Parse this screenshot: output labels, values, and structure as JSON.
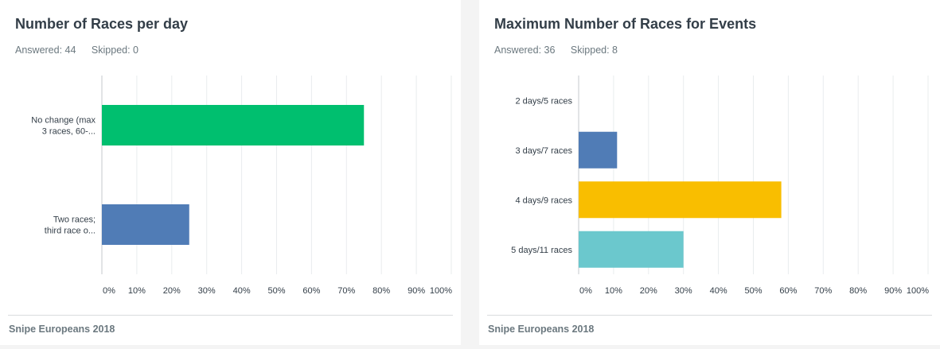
{
  "chart_data": [
    {
      "type": "bar",
      "orientation": "horizontal",
      "title": "Number of Races per day",
      "answered": "Answered: 44",
      "skipped": "Skipped: 0",
      "footer": "Snipe Europeans 2018",
      "categories": [
        [
          "No change (max",
          "3 races, 60-..."
        ],
        [
          "Two races;",
          "third race o..."
        ]
      ],
      "values": [
        75,
        25
      ],
      "colors": [
        "#00bf6f",
        "#507cb6"
      ],
      "x_ticks": [
        "0%",
        "10%",
        "20%",
        "30%",
        "40%",
        "50%",
        "60%",
        "70%",
        "80%",
        "90%",
        "100%"
      ],
      "xlim": [
        0,
        100
      ],
      "grid": true,
      "legend": "none"
    },
    {
      "type": "bar",
      "orientation": "horizontal",
      "title": "Maximum Number of Races for Events",
      "answered": "Answered: 36",
      "skipped": "Skipped: 8",
      "footer": "Snipe Europeans 2018",
      "categories": [
        [
          "2 days/5 races"
        ],
        [
          "3 days/7 races"
        ],
        [
          "4 days/9 races"
        ],
        [
          "5 days/11 races"
        ]
      ],
      "values": [
        0,
        11,
        58,
        30
      ],
      "colors": [
        "#f05b24",
        "#507cb6",
        "#f9be00",
        "#6bc8cd"
      ],
      "x_ticks": [
        "0%",
        "10%",
        "20%",
        "30%",
        "40%",
        "50%",
        "60%",
        "70%",
        "80%",
        "90%",
        "100%"
      ],
      "xlim": [
        0,
        100
      ],
      "grid": true,
      "legend": "none"
    }
  ]
}
